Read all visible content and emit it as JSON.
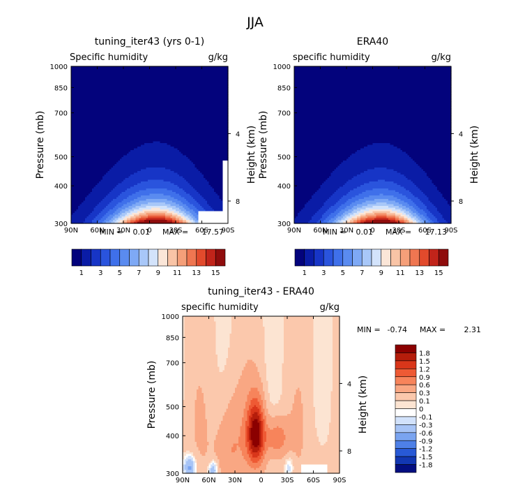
{
  "title": "JJA",
  "chart_data": [
    {
      "type": "heatmap",
      "title": "tuning_iter43 (yrs 0-1)",
      "variable_label": "Specific humidity",
      "units": "g/kg",
      "ylabel": "Pressure (mb)",
      "right_ylabel": "Height (km)",
      "x_ticks": [
        "90N",
        "60N",
        "30N",
        "0",
        "30S",
        "60S",
        "90S"
      ],
      "y_ticks": [
        "300",
        "400",
        "500",
        "700",
        "850",
        "1000"
      ],
      "height_ticks": [
        "8",
        "4"
      ],
      "min_label": "MIN =",
      "min_value": "0.01",
      "max_label": "MAX =",
      "max_value": "17.57",
      "color_levels": [
        1,
        2,
        3,
        4,
        5,
        6,
        7,
        8,
        9,
        10,
        11,
        12,
        13,
        14,
        15
      ],
      "colorbar_labels": [
        "1",
        "3",
        "5",
        "7",
        "9",
        "11",
        "13",
        "15"
      ],
      "peak": 17.57,
      "xlim": [
        90,
        -90
      ],
      "ylim": [
        1000,
        300
      ]
    },
    {
      "type": "heatmap",
      "title": "ERA40",
      "variable_label": "specific humidity",
      "units": "g/kg",
      "ylabel": "Pressure (mb)",
      "right_ylabel": "Height (km)",
      "x_ticks": [
        "90N",
        "60N",
        "30N",
        "0",
        "30S",
        "60S",
        "90S"
      ],
      "y_ticks": [
        "300",
        "400",
        "500",
        "700",
        "850",
        "1000"
      ],
      "height_ticks": [
        "8",
        "4"
      ],
      "min_label": "MIN =",
      "min_value": "0.01",
      "max_label": "MAX =",
      "max_value": "17.13",
      "color_levels": [
        1,
        2,
        3,
        4,
        5,
        6,
        7,
        8,
        9,
        10,
        11,
        12,
        13,
        14,
        15
      ],
      "colorbar_labels": [
        "1",
        "3",
        "5",
        "7",
        "9",
        "11",
        "13",
        "15"
      ],
      "peak": 17.13,
      "xlim": [
        90,
        -90
      ],
      "ylim": [
        1000,
        300
      ]
    },
    {
      "type": "heatmap",
      "title": "tuning_iter43 - ERA40",
      "variable_label": "specific humidity",
      "units": "g/kg",
      "ylabel": "Pressure (mb)",
      "right_ylabel": "Height (km)",
      "x_ticks": [
        "90N",
        "60N",
        "30N",
        "0",
        "30S",
        "60S",
        "90S"
      ],
      "y_ticks": [
        "300",
        "400",
        "500",
        "700",
        "850",
        "1000"
      ],
      "height_ticks": [
        "8",
        "4"
      ],
      "min_label": "MIN =",
      "min_value": "-0.74",
      "max_label": "MAX =",
      "max_value": "2.31",
      "colorbar_labels": [
        "1.8",
        "1.5",
        "1.2",
        "0.9",
        "0.6",
        "0.3",
        "0.1",
        "0",
        "-0.1",
        "-0.3",
        "-0.6",
        "-0.9",
        "-1.2",
        "-1.5",
        "-1.8"
      ],
      "xlim": [
        90,
        -90
      ],
      "ylim": [
        1000,
        300
      ]
    }
  ],
  "colors": {
    "humidity_scale": [
      "#03037c",
      "#0a1ca6",
      "#1735c6",
      "#2a54dd",
      "#3f70ea",
      "#5a8bf0",
      "#7ea9f5",
      "#a8c7f8",
      "#d3e3fb",
      "#fbe6d8",
      "#f9c4a6",
      "#f59f79",
      "#ef7651",
      "#e24a2c",
      "#c1241a",
      "#8f0c0c"
    ],
    "diff_scale_top_down": [
      "#8b0000",
      "#b51d0b",
      "#d9361a",
      "#ee5a34",
      "#f7845b",
      "#f9a783",
      "#fbc8ac",
      "#fce4d2",
      "#ffffff",
      "#d2e2fb",
      "#a7c4f6",
      "#7aa4f0",
      "#4e80e7",
      "#2859d6",
      "#1237b2",
      "#030e80"
    ]
  }
}
